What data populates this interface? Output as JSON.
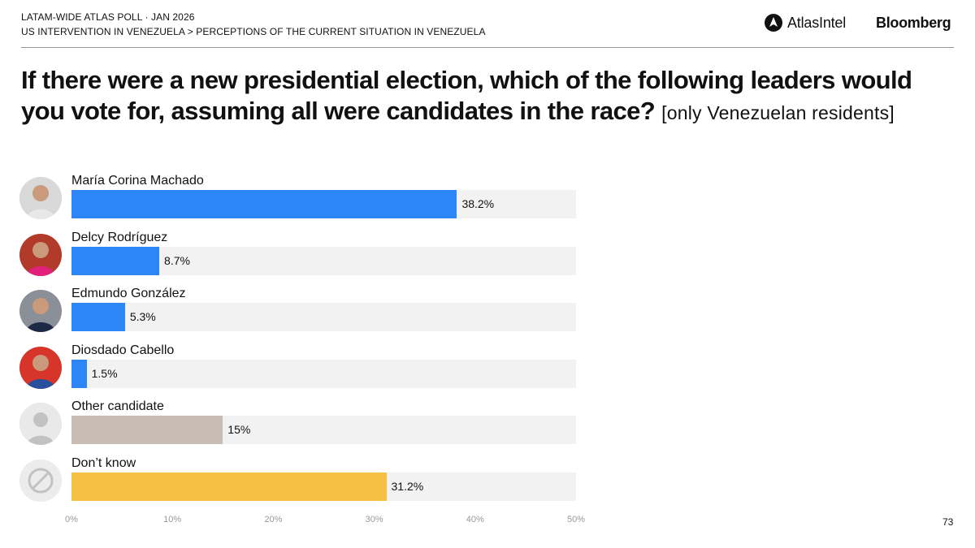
{
  "header": {
    "line1": "LATAM-WIDE ATLAS POLL · JAN 2026",
    "line2": "US INTERVENTION IN VENEZUELA > PERCEPTIONS OF THE CURRENT SITUATION IN VENEZUELA",
    "brand_atlas": "AtlasIntel",
    "brand_bloomberg": "Bloomberg"
  },
  "question": {
    "main": "If there were a new presidential election, which of the following leaders would you vote for, assuming all were candidates in the race?",
    "note": "[only Venezuelan residents]"
  },
  "page_number": "73",
  "colors": {
    "candidate_bar": "#2d86f5",
    "other_bar": "#c8bdb5",
    "dont_know_bar": "#f6c044",
    "track": "#f2f2f2"
  },
  "chart_data": {
    "type": "bar",
    "orientation": "horizontal",
    "categories": [
      "María Corina Machado",
      "Delcy Rodríguez",
      "Edmundo González",
      "Diosdado Cabello",
      "Other candidate",
      "Don’t know"
    ],
    "values": [
      38.2,
      8.7,
      5.3,
      1.5,
      15,
      31.2
    ],
    "value_labels": [
      "38.2%",
      "8.7%",
      "5.3%",
      "1.5%",
      "15%",
      "31.2%"
    ],
    "bar_colors": [
      "#2d86f5",
      "#2d86f5",
      "#2d86f5",
      "#2d86f5",
      "#c8bdb5",
      "#f6c044"
    ],
    "avatars": [
      "person-photo-icon",
      "person-photo-icon",
      "person-photo-icon",
      "person-photo-icon",
      "generic-person-icon",
      "prohibited-icon"
    ],
    "xlim": [
      0,
      50
    ],
    "xticks": [
      0,
      10,
      20,
      30,
      40,
      50
    ],
    "xtick_labels": [
      "0%",
      "10%",
      "20%",
      "30%",
      "40%",
      "50%"
    ],
    "grid": false,
    "legend": "none"
  }
}
